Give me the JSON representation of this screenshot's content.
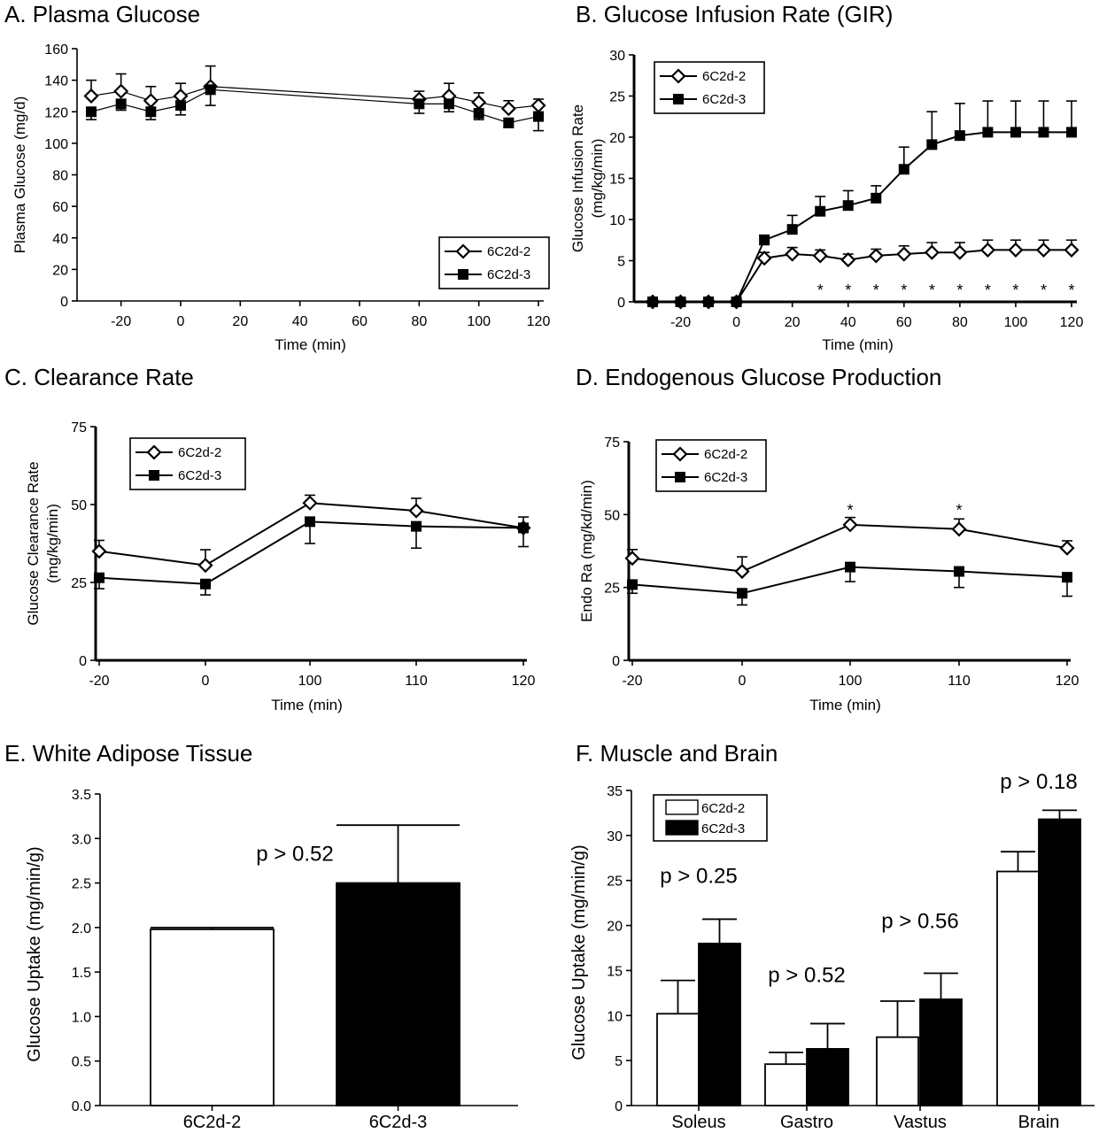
{
  "chart_data": [
    {
      "id": "A",
      "type": "line",
      "title": "A.  Plasma Glucose",
      "xlabel": "Time (min)",
      "ylabel": "Plasma Glucose (mg/d)",
      "xlim": [
        -30,
        120
      ],
      "ylim": [
        0,
        160
      ],
      "xticks": [
        -20,
        0,
        20,
        40,
        60,
        80,
        100,
        120
      ],
      "yticks": [
        0,
        20,
        40,
        60,
        80,
        100,
        120,
        140,
        160
      ],
      "legend": "bottom-right",
      "series": [
        {
          "name": "6C2d-2",
          "marker": "diamond-open",
          "x": [
            -30,
            -20,
            -10,
            0,
            10,
            80,
            90,
            100,
            110,
            120
          ],
          "y": [
            130,
            133,
            127,
            130,
            136,
            128,
            130,
            126,
            122,
            124
          ],
          "err": [
            10,
            11,
            9,
            8,
            13,
            5,
            8,
            6,
            5,
            4
          ]
        },
        {
          "name": "6C2d-3",
          "marker": "square-filled",
          "x": [
            -30,
            -20,
            -10,
            0,
            10,
            80,
            90,
            100,
            110,
            120
          ],
          "y": [
            120,
            125,
            120,
            124,
            134,
            125,
            125,
            119,
            113,
            117
          ],
          "err": [
            5,
            4,
            5,
            6,
            10,
            6,
            5,
            4,
            3,
            9
          ]
        }
      ],
      "annotations": []
    },
    {
      "id": "B",
      "type": "line",
      "title": "B.  Glucose Infusion Rate (GIR)",
      "xlabel": "Time (min)",
      "ylabel": "Glucose Infusion Rate\n(mg/kg/min)",
      "xlim": [
        -30,
        120
      ],
      "ylim": [
        0,
        30
      ],
      "xticks": [
        -20,
        0,
        20,
        40,
        60,
        80,
        100,
        120
      ],
      "yticks": [
        0,
        5,
        10,
        15,
        20,
        25,
        30
      ],
      "legend": "top-left",
      "series": [
        {
          "name": "6C2d-2",
          "marker": "diamond-open",
          "x": [
            -30,
            -20,
            -10,
            0,
            10,
            20,
            30,
            40,
            50,
            60,
            70,
            80,
            90,
            100,
            110,
            120
          ],
          "y": [
            0,
            0,
            0,
            0,
            5.3,
            5.8,
            5.6,
            5.1,
            5.6,
            5.8,
            6.0,
            6.0,
            6.3,
            6.3,
            6.3,
            6.3
          ],
          "err": [
            0,
            0,
            0,
            0,
            0.7,
            0.8,
            0.7,
            0.7,
            0.8,
            1.0,
            1.2,
            1.2,
            1.2,
            1.2,
            1.2,
            1.2
          ]
        },
        {
          "name": "6C2d-3",
          "marker": "square-filled",
          "x": [
            -30,
            -20,
            -10,
            0,
            10,
            20,
            30,
            40,
            50,
            60,
            70,
            80,
            90,
            100,
            110,
            120
          ],
          "y": [
            0,
            0,
            0,
            0,
            7.5,
            8.8,
            11.0,
            11.7,
            12.6,
            16.1,
            19.1,
            20.2,
            20.6,
            20.6,
            20.6,
            20.6
          ],
          "err": [
            0,
            0,
            0,
            0,
            0.6,
            1.7,
            1.8,
            1.8,
            1.5,
            2.7,
            4.0,
            3.9,
            3.8,
            3.8,
            3.8,
            3.8
          ]
        }
      ],
      "annotations": [
        {
          "x": 30,
          "y": 1.6,
          "text": "*"
        },
        {
          "x": 40,
          "y": 1.6,
          "text": "*"
        },
        {
          "x": 50,
          "y": 1.6,
          "text": "*"
        },
        {
          "x": 60,
          "y": 1.6,
          "text": "*"
        },
        {
          "x": 70,
          "y": 1.6,
          "text": "*"
        },
        {
          "x": 80,
          "y": 1.6,
          "text": "*"
        },
        {
          "x": 90,
          "y": 1.6,
          "text": "*"
        },
        {
          "x": 100,
          "y": 1.6,
          "text": "*"
        },
        {
          "x": 110,
          "y": 1.6,
          "text": "*"
        },
        {
          "x": 120,
          "y": 1.6,
          "text": "*"
        }
      ]
    },
    {
      "id": "C",
      "type": "line",
      "title": "C. Clearance Rate",
      "xlabel": "Time (min)",
      "ylabel": "Glucose Clearance Rate\n(mg/kg/min)",
      "categories": [
        "-20",
        "0",
        "100",
        "110",
        "120"
      ],
      "ylim": [
        0,
        75
      ],
      "yticks": [
        0,
        25,
        50,
        75
      ],
      "legend": "top-left",
      "series": [
        {
          "name": "6C2d-2",
          "marker": "diamond-open",
          "y": [
            35,
            30.5,
            50.5,
            48,
            42.5
          ],
          "err": [
            3.5,
            5,
            2.5,
            4,
            3.5
          ]
        },
        {
          "name": "6C2d-3",
          "marker": "square-filled",
          "y": [
            26.5,
            24.5,
            44.5,
            43,
            42.5
          ],
          "err": [
            3.5,
            3.5,
            7,
            7,
            6
          ]
        }
      ],
      "annotations": []
    },
    {
      "id": "D",
      "type": "line",
      "title": "D. Endogenous Glucose Production",
      "xlabel": "Time (min)",
      "ylabel": "Endo Ra (mg/kd/min)",
      "categories": [
        "-20",
        "0",
        "100",
        "110",
        "120"
      ],
      "ylim": [
        0,
        75
      ],
      "yticks": [
        0,
        25,
        50,
        75
      ],
      "legend": "top-left",
      "series": [
        {
          "name": "6C2d-2",
          "marker": "diamond-open",
          "y": [
            35,
            30.5,
            46.5,
            45,
            38.5
          ],
          "err": [
            3,
            5,
            2.5,
            3.5,
            2.5
          ]
        },
        {
          "name": "6C2d-3",
          "marker": "square-filled",
          "y": [
            26,
            23,
            32,
            30.5,
            28.5
          ],
          "err": [
            3,
            4,
            5,
            5.5,
            6.5
          ]
        }
      ],
      "annotations": [
        {
          "category": "100",
          "y": 52,
          "text": "*"
        },
        {
          "category": "110",
          "y": 52,
          "text": "*"
        }
      ]
    },
    {
      "id": "E",
      "type": "bar",
      "title": "E. White  Adipose Tissue",
      "xlabel": "",
      "ylabel": "Glucose Uptake (mg/min/g)",
      "categories": [
        "6C2d-2",
        "6C2d-3"
      ],
      "values": [
        1.98,
        2.5
      ],
      "err": [
        0.02,
        0.65
      ],
      "fills": [
        "#ffffff",
        "#000000"
      ],
      "ylim": [
        0,
        3.5
      ],
      "yticks": [
        "0.0",
        "0.5",
        "1.0",
        "1.5",
        "2.0",
        "2.5",
        "3.0",
        "3.5"
      ],
      "annotations": [
        {
          "x_between": [
            0,
            1
          ],
          "y": 3.0,
          "text": "p > 0.52"
        }
      ]
    },
    {
      "id": "F",
      "type": "bar",
      "title": "F. Muscle and Brain",
      "xlabel": "",
      "ylabel": "Glucose Uptake (mg/min/g)",
      "categories": [
        "Soleus",
        "Gastro",
        "Vastus",
        "Brain"
      ],
      "ylim": [
        0,
        35
      ],
      "yticks": [
        0,
        5,
        10,
        15,
        20,
        25,
        30,
        35
      ],
      "legend": "top-left",
      "series": [
        {
          "name": "6C2d-2",
          "fill": "#ffffff",
          "values": [
            10.2,
            4.6,
            7.6,
            26.0
          ],
          "err": [
            3.7,
            1.3,
            4.0,
            2.2
          ]
        },
        {
          "name": "6C2d-3",
          "fill": "#000000",
          "values": [
            18.0,
            6.3,
            11.8,
            31.8
          ],
          "err": [
            2.7,
            2.8,
            2.9,
            1.0
          ]
        }
      ],
      "annotations": [
        {
          "category": "Soleus",
          "y": 25.5,
          "text": "p > 0.25"
        },
        {
          "category": "Gastro",
          "y": 14.5,
          "text": "p > 0.52"
        },
        {
          "category": "Vastus",
          "y": 20.5,
          "text": "p > 0.56"
        },
        {
          "category": "Brain",
          "y": 36.0,
          "text": "p > 0.18"
        }
      ]
    }
  ]
}
